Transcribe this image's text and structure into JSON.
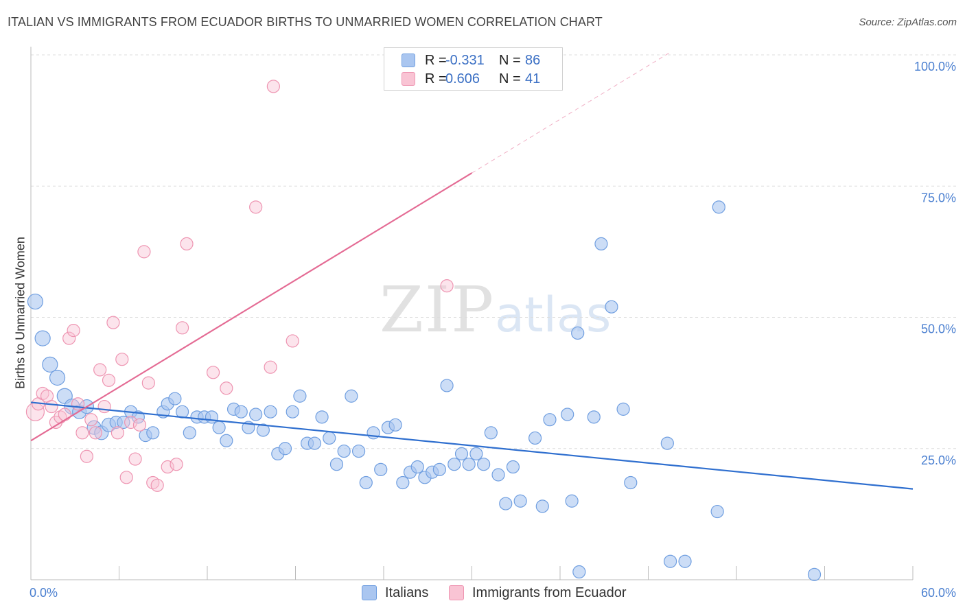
{
  "header": {
    "title": "ITALIAN VS IMMIGRANTS FROM ECUADOR BIRTHS TO UNMARRIED WOMEN CORRELATION CHART",
    "source": "Source: ZipAtlas.com"
  },
  "watermark": {
    "zip": "ZIP",
    "atlas": "atlas"
  },
  "legend": {
    "rows": [
      {
        "r_label": "R =",
        "r_value": "-0.331",
        "n_label": "N =",
        "n_value": "86",
        "color": "#aac6f0",
        "border": "#6f9ee0"
      },
      {
        "r_label": "R =",
        "r_value": "0.606",
        "n_label": "N =",
        "n_value": "41",
        "color": "#f9c4d4",
        "border": "#ee94b1"
      }
    ],
    "series_labels": [
      "Italians",
      "Immigrants from Ecuador"
    ]
  },
  "chart_data": {
    "type": "scatter",
    "title": "ITALIAN VS IMMIGRANTS FROM ECUADOR BIRTHS TO UNMARRIED WOMEN CORRELATION CHART",
    "xlabel": "",
    "ylabel": "Births to Unmarried Women",
    "xlim": [
      0,
      60
    ],
    "ylim": [
      0,
      100
    ],
    "x_ticks": [
      0,
      6,
      12,
      18,
      24,
      30,
      36,
      42,
      48,
      54,
      60
    ],
    "x_tick_labels": {
      "0": "0.0%",
      "60": "60.0%"
    },
    "y_tick_labels": [
      {
        "y": 100,
        "label": "100.0%"
      },
      {
        "y": 75,
        "label": "75.0%"
      },
      {
        "y": 50,
        "label": "50.0%"
      },
      {
        "y": 25,
        "label": "25.0%"
      }
    ],
    "grid": true,
    "legend_position": "top-center",
    "series": [
      {
        "name": "Italians",
        "color": "#aac6f0",
        "stroke": "#6f9ee0",
        "trend": {
          "x1": 0,
          "y1": 33.8,
          "x2": 60,
          "y2": 17.3,
          "color": "#2f6fcf"
        },
        "points": [
          [
            0.3,
            53,
            11
          ],
          [
            0.8,
            46,
            11
          ],
          [
            1.3,
            41,
            11
          ],
          [
            1.8,
            38.5,
            11
          ],
          [
            2.3,
            35,
            11
          ],
          [
            2.8,
            33,
            11
          ],
          [
            3.3,
            32,
            10
          ],
          [
            3.8,
            33,
            10
          ],
          [
            4.3,
            29,
            10
          ],
          [
            4.8,
            28,
            10
          ],
          [
            5.3,
            29.5,
            10
          ],
          [
            5.8,
            30,
            9
          ],
          [
            6.3,
            30,
            9
          ],
          [
            6.8,
            32,
            9
          ],
          [
            7.3,
            31,
            9
          ],
          [
            7.8,
            27.5,
            9
          ],
          [
            8.3,
            28,
            9
          ],
          [
            9.0,
            32,
            9
          ],
          [
            9.3,
            33.5,
            9
          ],
          [
            9.8,
            34.5,
            9
          ],
          [
            10.3,
            32,
            9
          ],
          [
            10.8,
            28,
            9
          ],
          [
            11.3,
            31,
            9
          ],
          [
            11.8,
            31,
            9
          ],
          [
            12.3,
            31,
            9
          ],
          [
            12.8,
            29,
            9
          ],
          [
            13.3,
            26.5,
            9
          ],
          [
            13.8,
            32.5,
            9
          ],
          [
            14.3,
            32,
            9
          ],
          [
            14.8,
            29,
            9
          ],
          [
            15.3,
            31.5,
            9
          ],
          [
            15.8,
            28.5,
            9
          ],
          [
            16.3,
            32,
            9
          ],
          [
            16.8,
            24,
            9
          ],
          [
            17.3,
            25,
            9
          ],
          [
            17.8,
            32,
            9
          ],
          [
            18.3,
            35,
            9
          ],
          [
            18.8,
            26,
            9
          ],
          [
            19.3,
            26,
            9
          ],
          [
            19.8,
            31,
            9
          ],
          [
            20.3,
            27,
            9
          ],
          [
            20.8,
            22,
            9
          ],
          [
            21.3,
            24.5,
            9
          ],
          [
            21.8,
            35,
            9
          ],
          [
            22.3,
            24.5,
            9
          ],
          [
            22.8,
            18.5,
            9
          ],
          [
            23.3,
            28,
            9
          ],
          [
            23.8,
            21,
            9
          ],
          [
            24.3,
            29,
            9
          ],
          [
            24.8,
            29.5,
            9
          ],
          [
            25.3,
            18.5,
            9
          ],
          [
            25.8,
            20.5,
            9
          ],
          [
            26.3,
            21.5,
            9
          ],
          [
            26.8,
            19.5,
            9
          ],
          [
            27.3,
            20.5,
            9
          ],
          [
            27.8,
            21,
            9
          ],
          [
            28.3,
            37,
            9
          ],
          [
            28.8,
            22,
            9
          ],
          [
            29.3,
            24,
            9
          ],
          [
            29.8,
            22,
            9
          ],
          [
            30.3,
            24,
            9
          ],
          [
            30.8,
            22,
            9
          ],
          [
            31.3,
            28,
            9
          ],
          [
            31.8,
            20,
            9
          ],
          [
            32.3,
            14.5,
            9
          ],
          [
            32.8,
            21.5,
            9
          ],
          [
            33.3,
            15,
            9
          ],
          [
            34.3,
            27,
            9
          ],
          [
            34.8,
            14,
            9
          ],
          [
            35.3,
            30.5,
            9
          ],
          [
            36.5,
            31.5,
            9
          ],
          [
            36.8,
            15,
            9
          ],
          [
            37.3,
            1.5,
            9
          ],
          [
            38.3,
            31,
            9
          ],
          [
            38.8,
            64,
            9
          ],
          [
            39.5,
            52,
            9
          ],
          [
            40.3,
            32.5,
            9
          ],
          [
            40.8,
            18.5,
            9
          ],
          [
            37.2,
            47,
            9
          ],
          [
            43.3,
            26,
            9
          ],
          [
            43.5,
            3.5,
            9
          ],
          [
            44.5,
            3.5,
            9
          ],
          [
            46.8,
            71,
            9
          ],
          [
            46.7,
            13,
            9
          ],
          [
            53.3,
            1,
            9
          ]
        ]
      },
      {
        "name": "Immigrants from Ecuador",
        "color": "#f9c4d4",
        "stroke": "#ee94b1",
        "trend": {
          "x1": 0,
          "y1": 26.5,
          "x2": 30,
          "y2": 77.5,
          "dash_x2": 43.5,
          "dash_y2": 100.5,
          "color": "#e46b94"
        },
        "points": [
          [
            0.3,
            32,
            13
          ],
          [
            0.5,
            33.5,
            9
          ],
          [
            0.8,
            35.5,
            9
          ],
          [
            1.1,
            35,
            9
          ],
          [
            1.4,
            33,
            9
          ],
          [
            1.7,
            30,
            9
          ],
          [
            2.0,
            31,
            9
          ],
          [
            2.3,
            31.5,
            9
          ],
          [
            2.6,
            46,
            9
          ],
          [
            2.9,
            47.5,
            9
          ],
          [
            3.2,
            33.5,
            9
          ],
          [
            3.5,
            28,
            9
          ],
          [
            3.8,
            23.5,
            9
          ],
          [
            4.1,
            30.5,
            9
          ],
          [
            4.4,
            28,
            9
          ],
          [
            4.7,
            40,
            9
          ],
          [
            5.0,
            33,
            9
          ],
          [
            5.3,
            38,
            9
          ],
          [
            5.6,
            49,
            9
          ],
          [
            5.9,
            28,
            9
          ],
          [
            6.2,
            42,
            9
          ],
          [
            6.5,
            19.5,
            9
          ],
          [
            6.8,
            30,
            9
          ],
          [
            7.1,
            23,
            9
          ],
          [
            7.4,
            29.5,
            9
          ],
          [
            7.7,
            62.5,
            9
          ],
          [
            8.0,
            37.5,
            9
          ],
          [
            8.3,
            18.5,
            9
          ],
          [
            8.6,
            18,
            9
          ],
          [
            9.3,
            21.5,
            9
          ],
          [
            9.9,
            22,
            9
          ],
          [
            10.3,
            48,
            9
          ],
          [
            10.6,
            64,
            9
          ],
          [
            12.4,
            39.5,
            9
          ],
          [
            13.3,
            36.5,
            9
          ],
          [
            15.3,
            71,
            9
          ],
          [
            16.3,
            40.5,
            9
          ],
          [
            16.5,
            94,
            9
          ],
          [
            17.8,
            45.5,
            9
          ],
          [
            28.3,
            56,
            9
          ]
        ]
      }
    ]
  }
}
